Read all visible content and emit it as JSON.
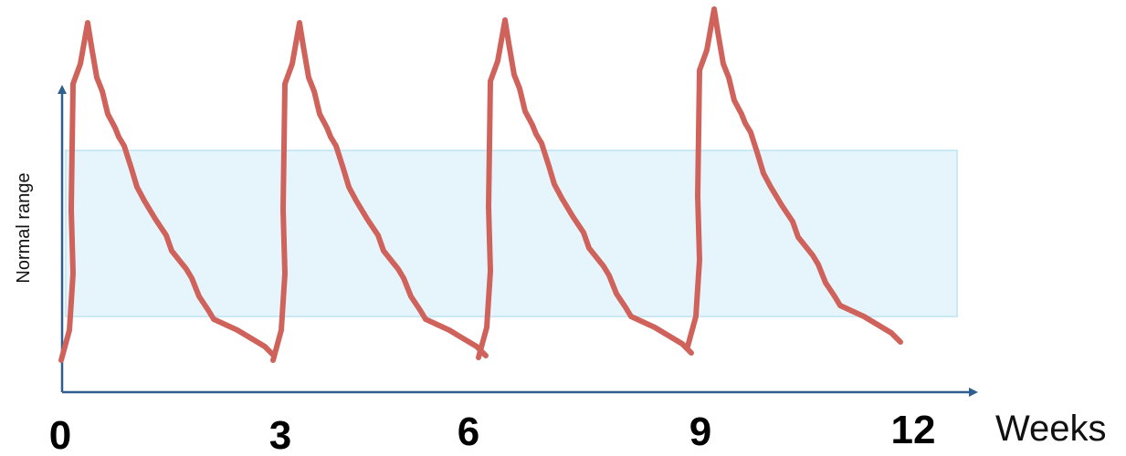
{
  "y_axis_label": "Normal range",
  "x_axis_label": "Weeks",
  "x_ticks": [
    0,
    3,
    6,
    9,
    12
  ]
}
